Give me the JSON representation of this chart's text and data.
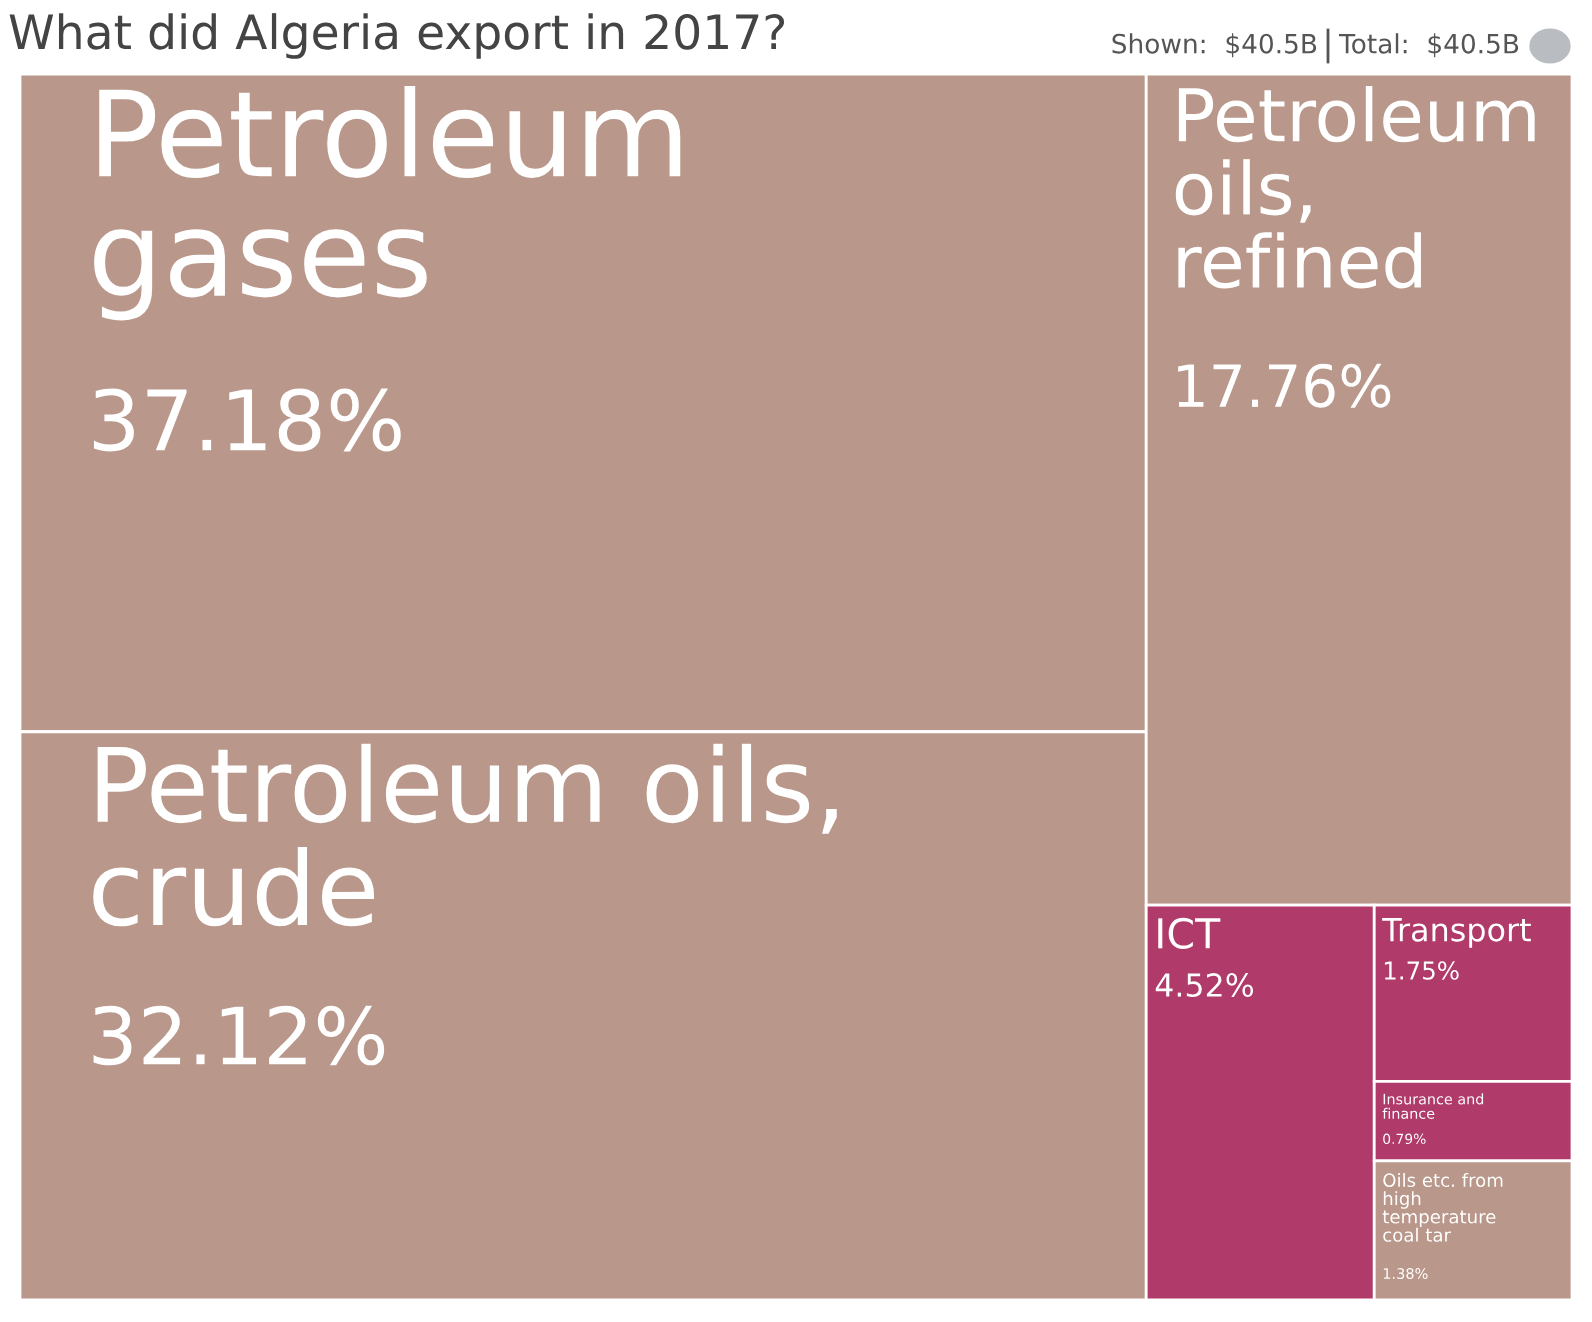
{
  "chart_data": {
    "type": "other",
    "title": "What did Algeria export in 2017?",
    "annotations": [
      "Shown:  $40.5B",
      "Total:  $40.5B"
    ],
    "categories": [
      "Petroleum gases",
      "Petroleum oils, crude",
      "Petroleum oils, refined",
      "ICT",
      "Transport",
      "Insurance and finance",
      "Oils etc. from high temperature coal tar"
    ],
    "values": [
      37.18,
      32.12,
      17.76,
      4.52,
      1.75,
      0.79,
      1.38
    ],
    "value_labels": [
      "37.18%",
      "32.12%",
      "17.76%",
      "4.52%",
      "1.75%",
      "0.79%",
      "1.38%"
    ],
    "colors": [
      "#b9978a",
      "#b9978a",
      "#b9978a",
      "#b03a6a",
      "#b03a6a",
      "#b03a6a",
      "#b9978a"
    ]
  }
}
